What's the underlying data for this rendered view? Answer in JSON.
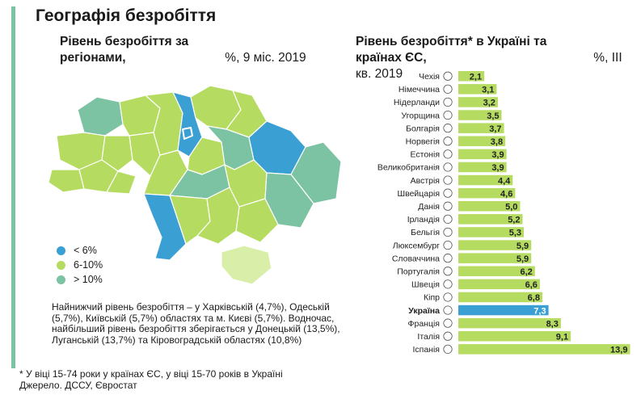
{
  "title": "Географія безробіття",
  "map": {
    "subtitle_bold": "Рівень безробіття за регіонами,",
    "subtitle_normal": " %, 9 міс. 2019",
    "legend": [
      {
        "label": "< 6%",
        "color": "#3a9fd3"
      },
      {
        "label": "6-10%",
        "color": "#b5dc60"
      },
      {
        "label": "> 10%",
        "color": "#7cc3a3"
      }
    ],
    "crimea_color": "#d9efa9",
    "note": "Найнижчий рівень безробіття – у Харківській (4,7%), Одеській (5,7%), Київській (5,7%) областях та м. Києві (5,7%). Водночас, найбільший рівень безробіття зберігається у Донецькій (13,5%), Луганській (13,7%) та Кіровоградській областях (10,8%)"
  },
  "bars": {
    "subtitle_bold": "Рівень безробіття* в Україні та країнах ЄС,",
    "subtitle_normal": " %, III кв. 2019"
  },
  "footnote_1": "* У віці 15-74 роки у країнах ЄС, у віці 15-70 років в Україні",
  "footnote_2": "Джерело. ДССУ, Євростат",
  "chart_data": {
    "type": "bar",
    "orientation": "horizontal",
    "categories": [
      "Чехія",
      "Німеччина",
      "Нідерланди",
      "Угорщина",
      "Болгарія",
      "Норвегія",
      "Естонія",
      "Великобританія",
      "Австрія",
      "Швейцарія",
      "Данія",
      "Ірландія",
      "Бельгія",
      "Люксембург",
      "Словаччина",
      "Португалія",
      "Швеція",
      "Кіпр",
      "Україна",
      "Франція",
      "Італія",
      "Іспанія"
    ],
    "values": [
      2.1,
      3.1,
      3.2,
      3.5,
      3.7,
      3.8,
      3.9,
      3.9,
      4.4,
      4.6,
      5.0,
      5.2,
      5.3,
      5.9,
      5.9,
      6.2,
      6.6,
      6.8,
      7.3,
      8.3,
      9.1,
      13.9
    ],
    "value_labels": [
      "2,1",
      "3,1",
      "3,2",
      "3,5",
      "3,7",
      "3,8",
      "3,9",
      "3,9",
      "4,4",
      "4,6",
      "5,0",
      "5,2",
      "5,3",
      "5,9",
      "5,9",
      "6,2",
      "6,6",
      "6,8",
      "7,3",
      "8,3",
      "9,1",
      "13,9"
    ],
    "highlight": "Україна",
    "bar_color": "#b5dc60",
    "highlight_color": "#3a9fd3",
    "xlim": [
      0,
      14
    ]
  }
}
